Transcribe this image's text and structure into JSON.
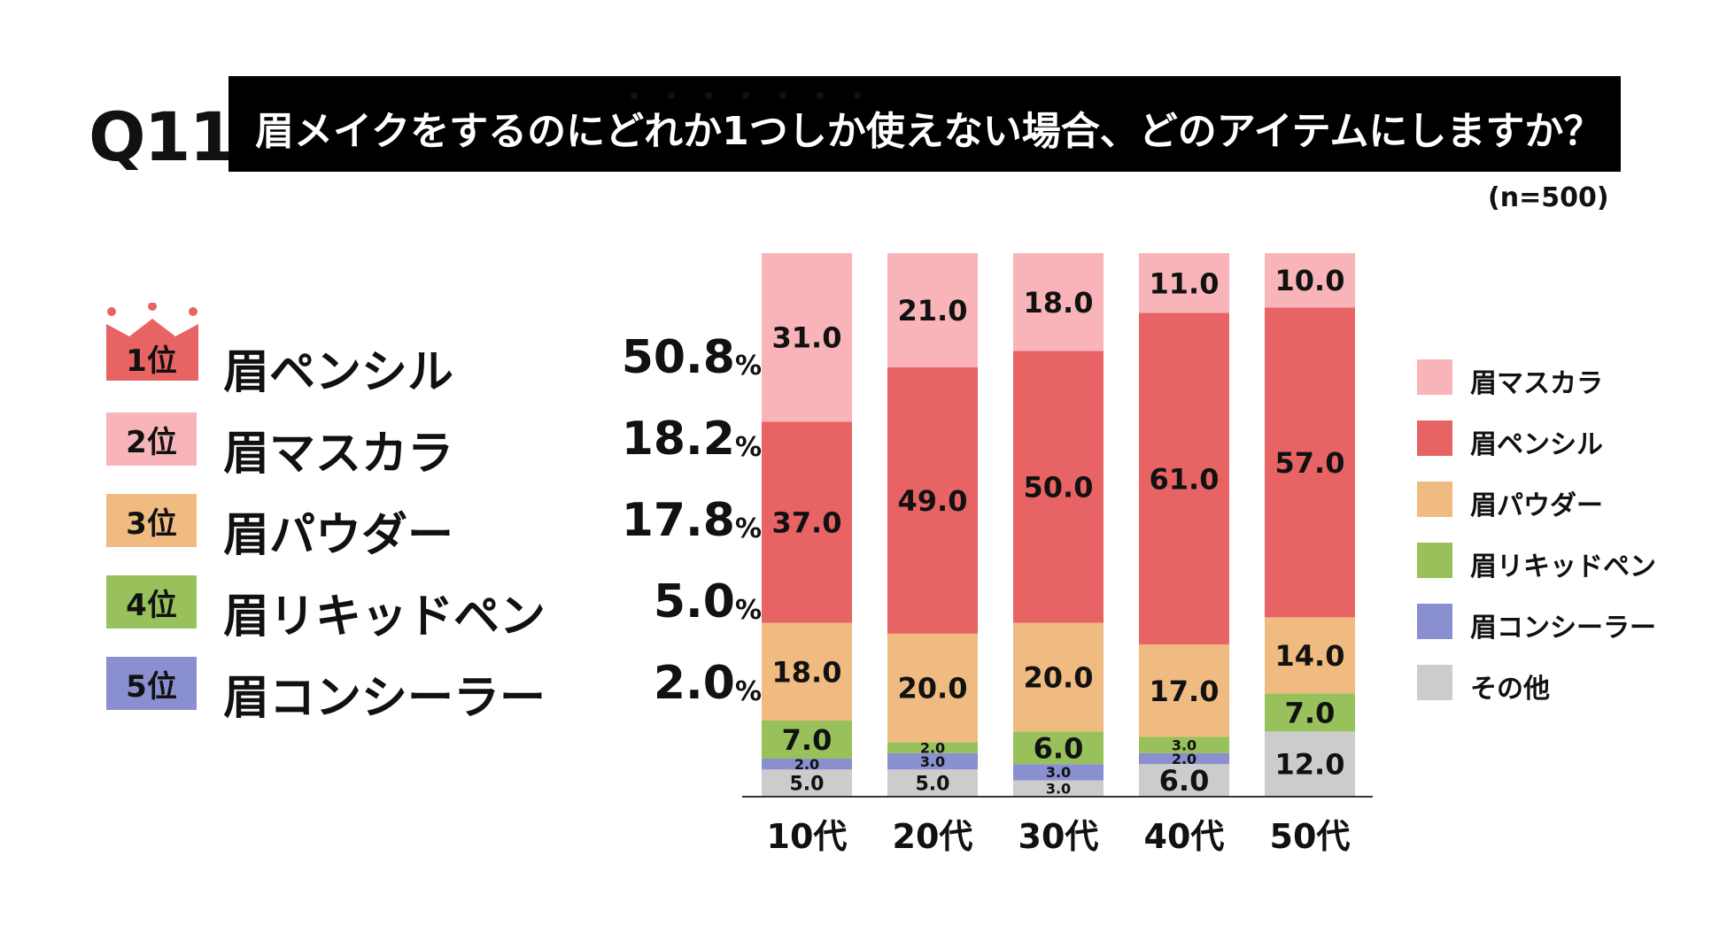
{
  "header": {
    "q_label": "Q11",
    "title": "眉メイクをするのにどれか1つしか使えない場合、どのアイテムにしますか？",
    "sample": "(n=500)"
  },
  "ranking": [
    {
      "rank": "1位",
      "name": "眉ペンシル",
      "value": "50.8",
      "unit": "%",
      "color": "#e86464"
    },
    {
      "rank": "2位",
      "name": "眉マスカラ",
      "value": "18.2",
      "unit": "%",
      "color": "#f8b4b8"
    },
    {
      "rank": "3位",
      "name": "眉パウダー",
      "value": "17.8",
      "unit": "%",
      "color": "#f0bb80"
    },
    {
      "rank": "4位",
      "name": "眉リキッドペン",
      "value": "5.0",
      "unit": "%",
      "color": "#98c15c"
    },
    {
      "rank": "5位",
      "name": "眉コンシーラー",
      "value": "2.0",
      "unit": "%",
      "color": "#8a8fcf"
    }
  ],
  "legend": [
    {
      "name": "眉マスカラ",
      "color": "#f8b4b8"
    },
    {
      "name": "眉ペンシル",
      "color": "#e86464"
    },
    {
      "name": "眉パウダー",
      "color": "#f0bb80"
    },
    {
      "name": "眉リキッドペン",
      "color": "#98c15c"
    },
    {
      "name": "眉コンシーラー",
      "color": "#8a8fcf"
    },
    {
      "name": "その他",
      "color": "#cccccc"
    }
  ],
  "chart_data": {
    "type": "bar",
    "stacked": true,
    "categories": [
      "10代",
      "20代",
      "30代",
      "40代",
      "50代"
    ],
    "ylim": [
      0,
      100
    ],
    "series": [
      {
        "name": "その他",
        "color": "#cccccc",
        "values": [
          5.0,
          5.0,
          3.0,
          6.0,
          12.0
        ]
      },
      {
        "name": "眉コンシーラー",
        "color": "#8a8fcf",
        "values": [
          2.0,
          3.0,
          3.0,
          2.0,
          0
        ]
      },
      {
        "name": "眉リキッドペン",
        "color": "#98c15c",
        "values": [
          7.0,
          2.0,
          6.0,
          3.0,
          7.0
        ]
      },
      {
        "name": "眉パウダー",
        "color": "#f0bb80",
        "values": [
          18.0,
          20.0,
          20.0,
          17.0,
          14.0
        ]
      },
      {
        "name": "眉ペンシル",
        "color": "#e86464",
        "values": [
          37.0,
          49.0,
          50.0,
          61.0,
          57.0
        ]
      },
      {
        "name": "眉マスカラ",
        "color": "#f8b4b8",
        "values": [
          31.0,
          21.0,
          18.0,
          11.0,
          10.0
        ]
      }
    ]
  }
}
